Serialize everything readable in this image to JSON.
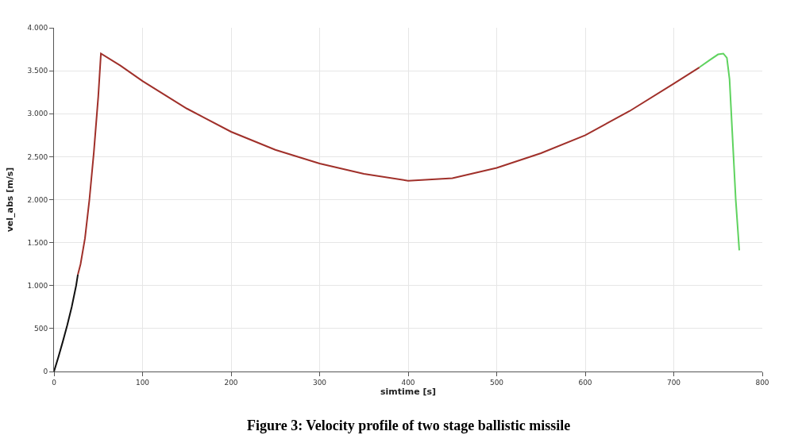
{
  "chart_data": {
    "type": "line",
    "title": "Figure 3: Velocity profile of two stage ballistic missile",
    "xlabel": "simtime [s]",
    "ylabel": "vel_abs [m/s]",
    "series": [
      {
        "color": "#111111",
        "x": [
          0,
          5,
          10,
          15,
          20,
          25,
          27
        ],
        "values": [
          0,
          170,
          350,
          540,
          750,
          1000,
          1130
        ]
      },
      {
        "color": "#a0302a",
        "x": [
          27,
          30,
          35,
          40,
          45,
          50,
          53,
          75,
          100,
          150,
          200,
          250,
          300,
          350,
          400,
          450,
          500,
          550,
          600,
          650,
          700,
          729
        ],
        "values": [
          1130,
          1250,
          1550,
          2000,
          2550,
          3200,
          3700,
          3560,
          3380,
          3060,
          2790,
          2580,
          2420,
          2300,
          2220,
          2250,
          2370,
          2540,
          2750,
          3030,
          3350,
          3540
        ]
      },
      {
        "color": "#5fd35f",
        "x": [
          729,
          740,
          750,
          756,
          760,
          763,
          766,
          770,
          774
        ],
        "values": [
          3540,
          3620,
          3690,
          3700,
          3650,
          3400,
          2800,
          2000,
          1410
        ]
      }
    ],
    "xlim": [
      0,
      800
    ],
    "xticks": [
      0,
      100,
      200,
      300,
      400,
      500,
      600,
      700,
      800
    ],
    "ylim": [
      0,
      4000
    ],
    "yticks": [
      0,
      500,
      {
        "value": 1000,
        "label": "1.000"
      },
      {
        "value": 1500,
        "label": "1.500"
      },
      {
        "value": 2000,
        "label": "2.000"
      },
      {
        "value": 2500,
        "label": "2.500"
      },
      {
        "value": 3000,
        "label": "3.000"
      },
      {
        "value": 3500,
        "label": "3.500"
      },
      {
        "value": 4000,
        "label": "4.000"
      }
    ],
    "grid": true,
    "marker": "none",
    "line_style": "solid"
  }
}
